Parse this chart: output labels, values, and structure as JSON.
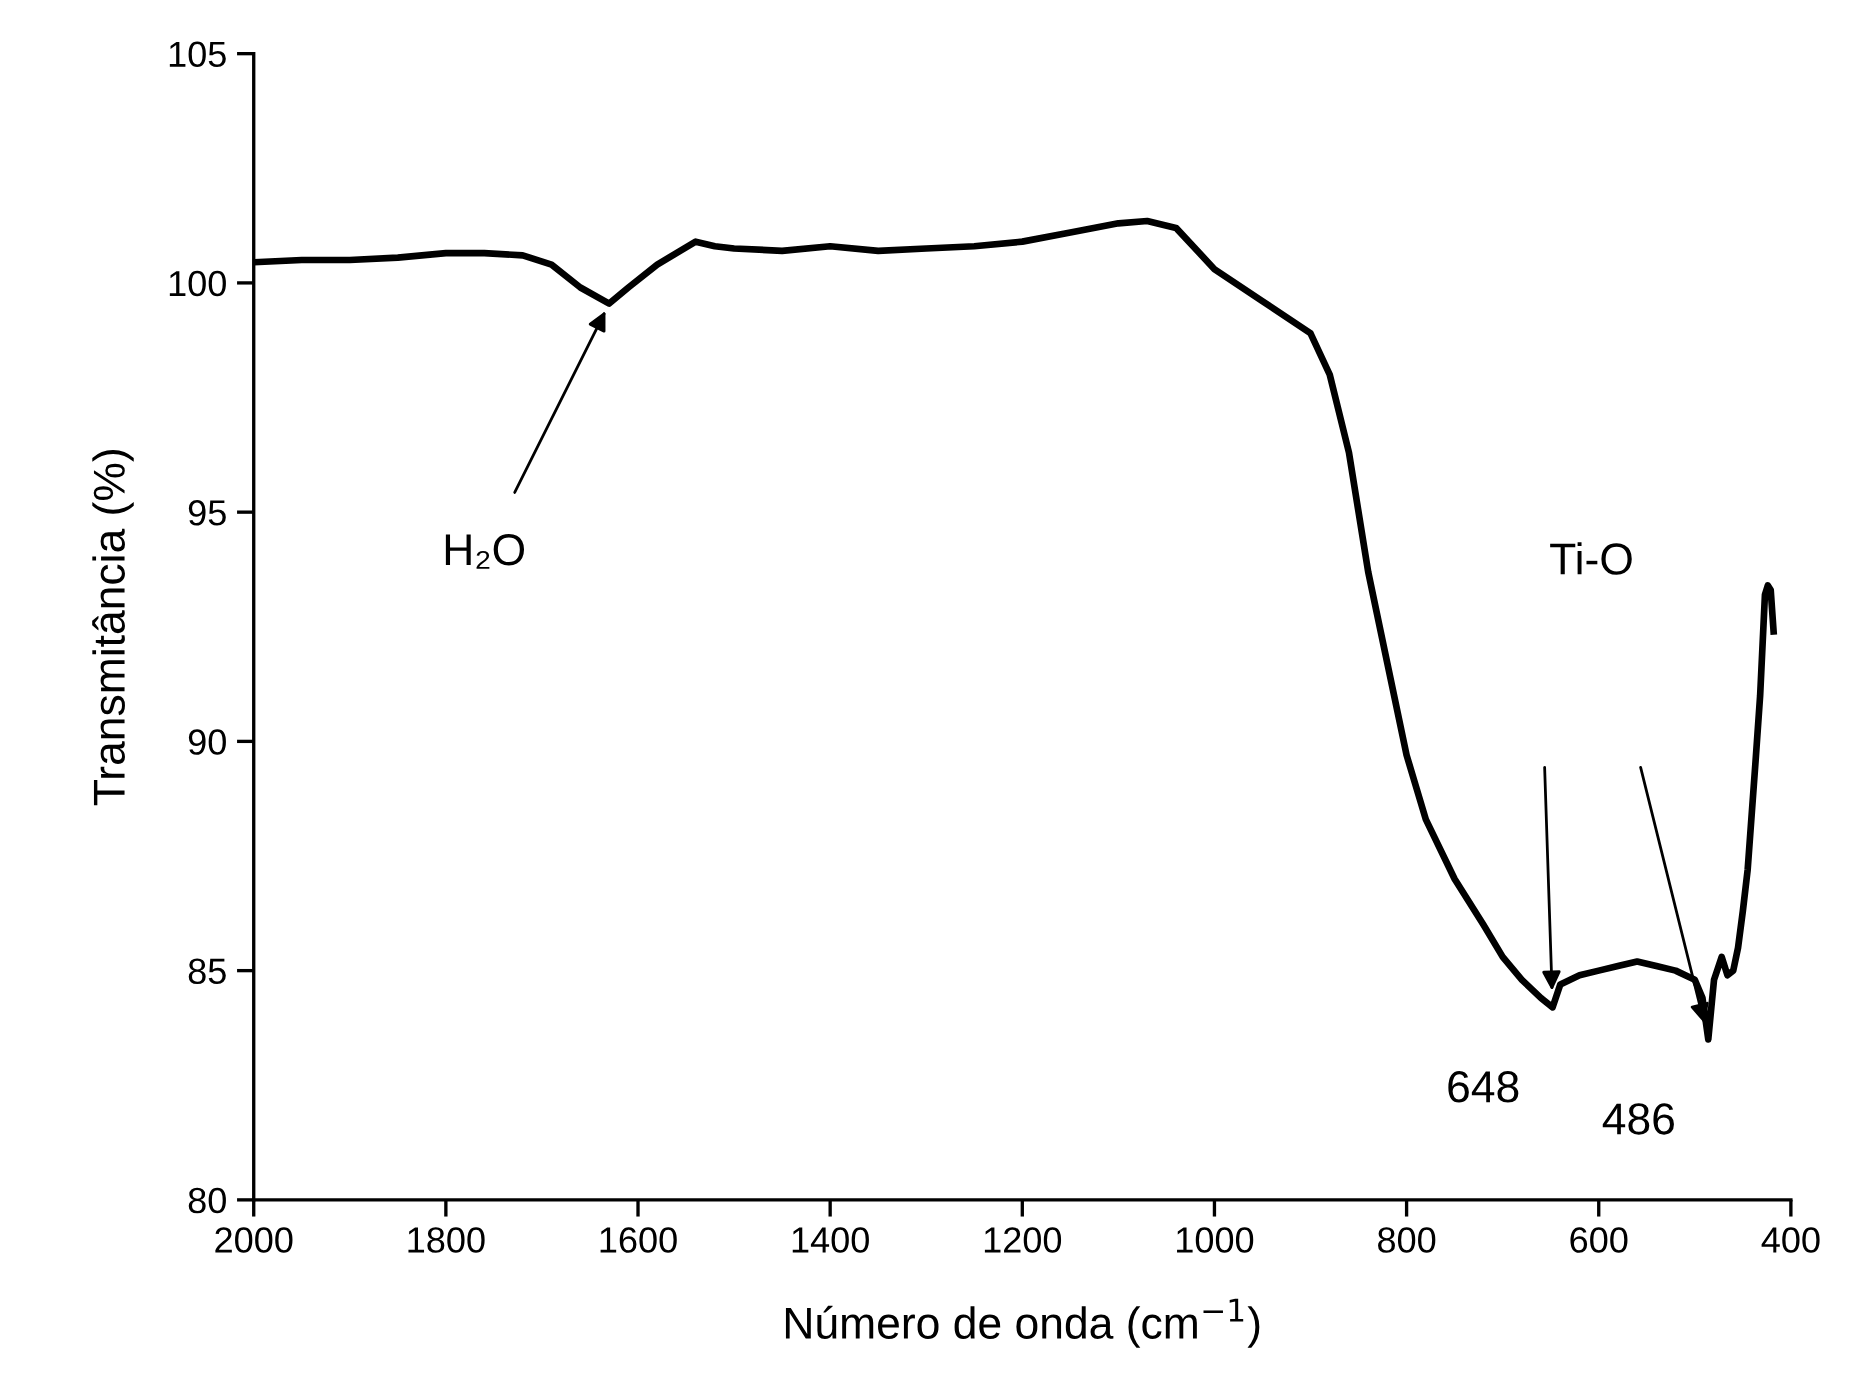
{
  "chart_data": {
    "type": "line",
    "xlabel": "Número de onda (cm$^{−1}$)",
    "ylabel": "Transmitância (%)",
    "xlim": [
      2000,
      400
    ],
    "ylim": [
      80,
      105
    ],
    "xticks": [
      2000,
      1800,
      1600,
      1400,
      1200,
      1000,
      800,
      600,
      400
    ],
    "yticks": [
      80,
      85,
      90,
      95,
      100,
      105
    ],
    "grid": false,
    "legend": false,
    "marker": "none",
    "line_style": "solid",
    "series": [
      {
        "color": "#000000",
        "x": [
          2000,
          1950,
          1900,
          1850,
          1800,
          1760,
          1720,
          1690,
          1660,
          1630,
          1610,
          1580,
          1540,
          1520,
          1500,
          1450,
          1400,
          1350,
          1300,
          1250,
          1200,
          1150,
          1100,
          1070,
          1040,
          1000,
          950,
          900,
          880,
          860,
          840,
          820,
          800,
          780,
          750,
          720,
          700,
          680,
          660,
          648,
          640,
          620,
          600,
          580,
          560,
          540,
          520,
          500,
          492,
          486,
          480,
          472,
          466,
          460,
          455,
          450,
          445,
          437,
          432,
          427,
          424,
          421,
          418
        ],
        "values": [
          100.45,
          100.5,
          100.5,
          100.55,
          100.65,
          100.65,
          100.6,
          100.4,
          99.9,
          99.55,
          99.9,
          100.4,
          100.9,
          100.8,
          100.75,
          100.7,
          100.8,
          100.7,
          100.75,
          100.8,
          100.9,
          101.1,
          101.3,
          101.35,
          101.2,
          100.3,
          99.6,
          98.9,
          98.0,
          96.3,
          93.7,
          91.7,
          89.7,
          88.3,
          87.0,
          86.0,
          85.3,
          84.8,
          84.4,
          84.2,
          84.7,
          84.9,
          85.0,
          85.1,
          85.2,
          85.1,
          85.0,
          84.8,
          84.4,
          83.5,
          84.8,
          85.3,
          84.9,
          85.0,
          85.5,
          86.3,
          87.2,
          89.5,
          91.0,
          93.2,
          93.4,
          93.3,
          92.4
        ]
      }
    ],
    "annotations": [
      {
        "text": "H₂O",
        "x": 1630,
        "y": 99.55
      },
      "Ti-O",
      {
        "text": "648",
        "x": 648,
        "y": 84.2
      },
      {
        "text": "486",
        "x": 486,
        "y": 83.5
      }
    ]
  }
}
